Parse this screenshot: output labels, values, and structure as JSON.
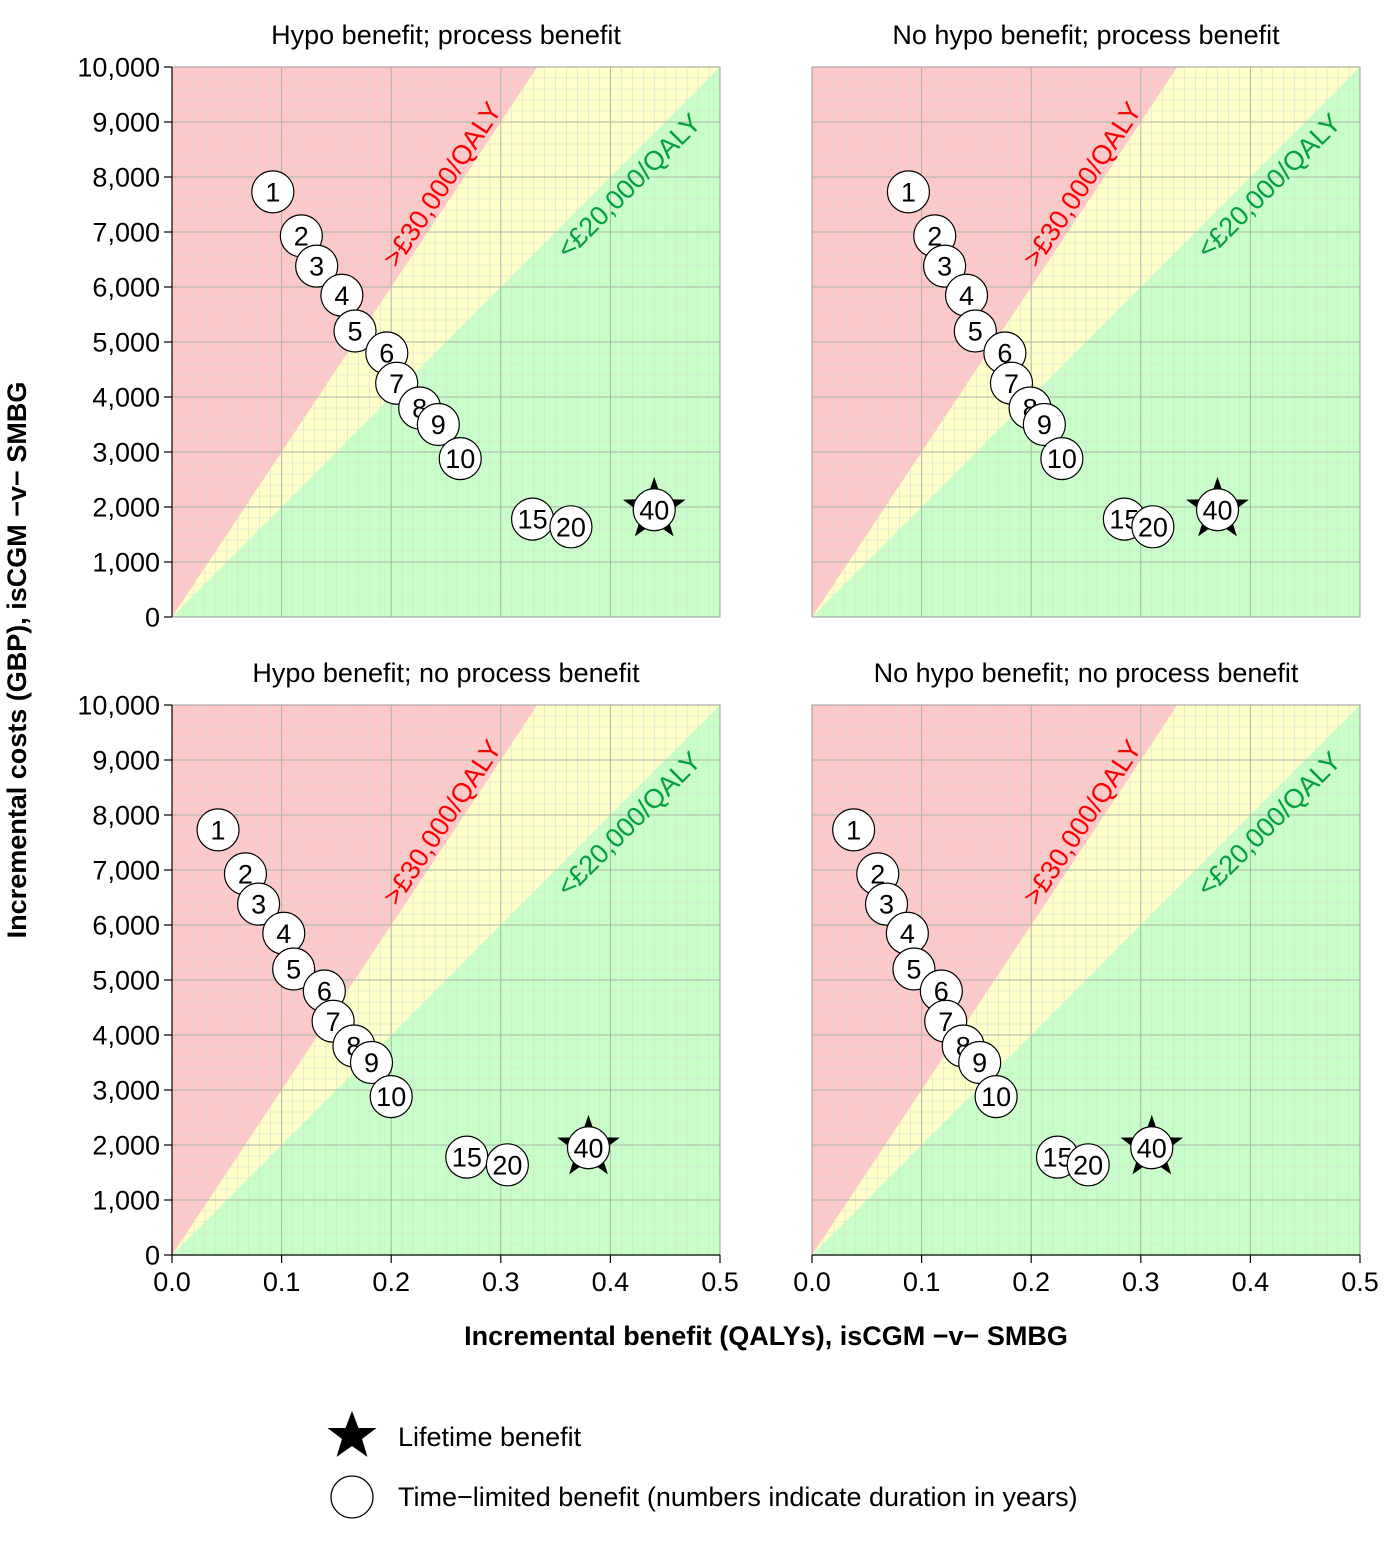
{
  "figure": {
    "xlabel": "Incremental benefit (QALYs), isCGM −v− SMBG",
    "ylabel": "Incremental costs (GBP), isCGM −v− SMBG",
    "region_labels": {
      "high": ">£30,000/QALY",
      "low": "<£20,000/QALY"
    },
    "colors": {
      "red_region": "#ffc8c8",
      "yellow_region": "#ffffc8",
      "green_region": "#c8ffc8",
      "high_label": "#ff0000",
      "low_label": "#00a040",
      "grid_major": "#a9b4a9",
      "grid_minor": "#d6dcd6"
    },
    "legend": {
      "items": [
        {
          "icon": "star-icon",
          "label": "Lifetime benefit"
        },
        {
          "icon": "circle-icon",
          "label": "Time−limited benefit (numbers indicate duration in years)"
        }
      ]
    }
  },
  "chart_data": [
    {
      "type": "scatter",
      "title": "Hypo benefit; process benefit",
      "xlim": [
        0,
        0.5
      ],
      "ylim": [
        0,
        10000
      ],
      "x_ticks": [
        "0.0",
        "0.1",
        "0.2",
        "0.3",
        "0.4",
        "0.5"
      ],
      "y_ticks": [
        "0",
        "1,000",
        "2,000",
        "3,000",
        "4,000",
        "5,000",
        "6,000",
        "7,000",
        "8,000",
        "9,000",
        "10,000"
      ],
      "thresholds_gbp_per_qaly": [
        30000,
        20000
      ],
      "points": [
        {
          "label": "1",
          "x": 0.092,
          "y": 7730,
          "marker": "circle"
        },
        {
          "label": "2",
          "x": 0.118,
          "y": 6930,
          "marker": "circle"
        },
        {
          "label": "3",
          "x": 0.132,
          "y": 6380,
          "marker": "circle"
        },
        {
          "label": "4",
          "x": 0.155,
          "y": 5850,
          "marker": "circle"
        },
        {
          "label": "5",
          "x": 0.167,
          "y": 5200,
          "marker": "circle"
        },
        {
          "label": "6",
          "x": 0.196,
          "y": 4800,
          "marker": "circle"
        },
        {
          "label": "7",
          "x": 0.205,
          "y": 4250,
          "marker": "circle"
        },
        {
          "label": "8",
          "x": 0.226,
          "y": 3800,
          "marker": "circle"
        },
        {
          "label": "9",
          "x": 0.243,
          "y": 3500,
          "marker": "circle"
        },
        {
          "label": "10",
          "x": 0.263,
          "y": 2880,
          "marker": "circle"
        },
        {
          "label": "15",
          "x": 0.329,
          "y": 1780,
          "marker": "circle"
        },
        {
          "label": "20",
          "x": 0.364,
          "y": 1640,
          "marker": "circle"
        },
        {
          "label": "40",
          "x": 0.44,
          "y": 1950,
          "marker": "star+circle"
        }
      ]
    },
    {
      "type": "scatter",
      "title": "No hypo benefit; process benefit",
      "xlim": [
        0,
        0.5
      ],
      "ylim": [
        0,
        10000
      ],
      "x_ticks": [
        "0.0",
        "0.1",
        "0.2",
        "0.3",
        "0.4",
        "0.5"
      ],
      "y_ticks": [
        "0",
        "1,000",
        "2,000",
        "3,000",
        "4,000",
        "5,000",
        "6,000",
        "7,000",
        "8,000",
        "9,000",
        "10,000"
      ],
      "thresholds_gbp_per_qaly": [
        30000,
        20000
      ],
      "points": [
        {
          "label": "1",
          "x": 0.088,
          "y": 7730,
          "marker": "circle"
        },
        {
          "label": "2",
          "x": 0.112,
          "y": 6930,
          "marker": "circle"
        },
        {
          "label": "3",
          "x": 0.121,
          "y": 6380,
          "marker": "circle"
        },
        {
          "label": "4",
          "x": 0.141,
          "y": 5850,
          "marker": "circle"
        },
        {
          "label": "5",
          "x": 0.149,
          "y": 5200,
          "marker": "circle"
        },
        {
          "label": "6",
          "x": 0.176,
          "y": 4800,
          "marker": "circle"
        },
        {
          "label": "7",
          "x": 0.182,
          "y": 4250,
          "marker": "circle"
        },
        {
          "label": "8",
          "x": 0.199,
          "y": 3800,
          "marker": "circle"
        },
        {
          "label": "9",
          "x": 0.212,
          "y": 3500,
          "marker": "circle"
        },
        {
          "label": "10",
          "x": 0.228,
          "y": 2880,
          "marker": "circle"
        },
        {
          "label": "15",
          "x": 0.285,
          "y": 1780,
          "marker": "circle"
        },
        {
          "label": "20",
          "x": 0.311,
          "y": 1640,
          "marker": "circle"
        },
        {
          "label": "40",
          "x": 0.37,
          "y": 1950,
          "marker": "star+circle"
        }
      ]
    },
    {
      "type": "scatter",
      "title": "Hypo benefit; no process benefit",
      "xlim": [
        0,
        0.5
      ],
      "ylim": [
        0,
        10000
      ],
      "x_ticks": [
        "0.0",
        "0.1",
        "0.2",
        "0.3",
        "0.4",
        "0.5"
      ],
      "y_ticks": [
        "0",
        "1,000",
        "2,000",
        "3,000",
        "4,000",
        "5,000",
        "6,000",
        "7,000",
        "8,000",
        "9,000",
        "10,000"
      ],
      "thresholds_gbp_per_qaly": [
        30000,
        20000
      ],
      "points": [
        {
          "label": "1",
          "x": 0.042,
          "y": 7730,
          "marker": "circle"
        },
        {
          "label": "2",
          "x": 0.067,
          "y": 6930,
          "marker": "circle"
        },
        {
          "label": "3",
          "x": 0.079,
          "y": 6380,
          "marker": "circle"
        },
        {
          "label": "4",
          "x": 0.102,
          "y": 5850,
          "marker": "circle"
        },
        {
          "label": "5",
          "x": 0.111,
          "y": 5200,
          "marker": "circle"
        },
        {
          "label": "6",
          "x": 0.139,
          "y": 4800,
          "marker": "circle"
        },
        {
          "label": "7",
          "x": 0.147,
          "y": 4250,
          "marker": "circle"
        },
        {
          "label": "8",
          "x": 0.166,
          "y": 3800,
          "marker": "circle"
        },
        {
          "label": "9",
          "x": 0.182,
          "y": 3500,
          "marker": "circle"
        },
        {
          "label": "10",
          "x": 0.2,
          "y": 2880,
          "marker": "circle"
        },
        {
          "label": "15",
          "x": 0.269,
          "y": 1780,
          "marker": "circle"
        },
        {
          "label": "20",
          "x": 0.306,
          "y": 1640,
          "marker": "circle"
        },
        {
          "label": "40",
          "x": 0.38,
          "y": 1950,
          "marker": "star+circle"
        }
      ]
    },
    {
      "type": "scatter",
      "title": "No hypo benefit; no process benefit",
      "xlim": [
        0,
        0.5
      ],
      "ylim": [
        0,
        10000
      ],
      "x_ticks": [
        "0.0",
        "0.1",
        "0.2",
        "0.3",
        "0.4",
        "0.5"
      ],
      "y_ticks": [
        "0",
        "1,000",
        "2,000",
        "3,000",
        "4,000",
        "5,000",
        "6,000",
        "7,000",
        "8,000",
        "9,000",
        "10,000"
      ],
      "thresholds_gbp_per_qaly": [
        30000,
        20000
      ],
      "points": [
        {
          "label": "1",
          "x": 0.038,
          "y": 7730,
          "marker": "circle"
        },
        {
          "label": "2",
          "x": 0.06,
          "y": 6930,
          "marker": "circle"
        },
        {
          "label": "3",
          "x": 0.068,
          "y": 6380,
          "marker": "circle"
        },
        {
          "label": "4",
          "x": 0.087,
          "y": 5850,
          "marker": "circle"
        },
        {
          "label": "5",
          "x": 0.093,
          "y": 5200,
          "marker": "circle"
        },
        {
          "label": "6",
          "x": 0.118,
          "y": 4800,
          "marker": "circle"
        },
        {
          "label": "7",
          "x": 0.122,
          "y": 4250,
          "marker": "circle"
        },
        {
          "label": "8",
          "x": 0.138,
          "y": 3800,
          "marker": "circle"
        },
        {
          "label": "9",
          "x": 0.153,
          "y": 3500,
          "marker": "circle"
        },
        {
          "label": "10",
          "x": 0.168,
          "y": 2880,
          "marker": "circle"
        },
        {
          "label": "15",
          "x": 0.224,
          "y": 1780,
          "marker": "circle"
        },
        {
          "label": "20",
          "x": 0.252,
          "y": 1640,
          "marker": "circle"
        },
        {
          "label": "40",
          "x": 0.31,
          "y": 1950,
          "marker": "star+circle"
        }
      ]
    }
  ]
}
